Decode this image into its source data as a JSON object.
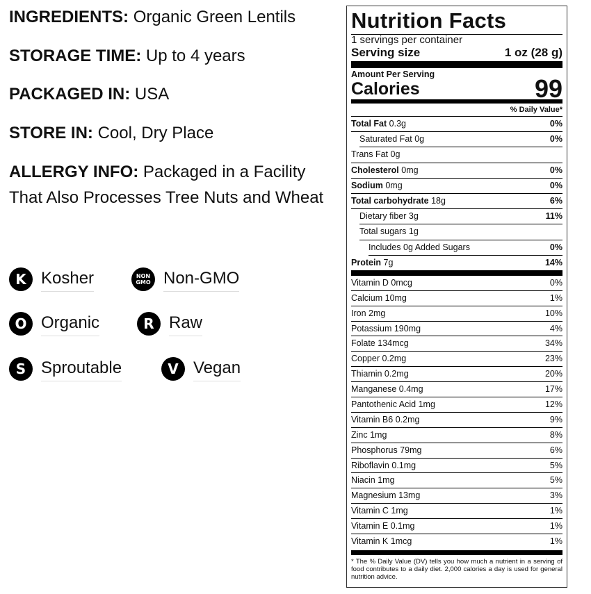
{
  "info": [
    {
      "label": "INGREDIENTS:",
      "value": "Organic Green Lentils"
    },
    {
      "label": "STORAGE TIME:",
      "value": "Up to 4 years"
    },
    {
      "label": "PACKAGED IN:",
      "value": "USA"
    },
    {
      "label": "STORE IN:",
      "value": "Cool, Dry Place"
    },
    {
      "label": "ALLERGY INFO:",
      "value": "Packaged in a Facility That Also Processes Tree Nuts and Wheat"
    }
  ],
  "badges": [
    {
      "icon": "K",
      "label": "Kosher"
    },
    {
      "icon": "NON GMO",
      "label": "Non-GMO"
    },
    {
      "icon": "O",
      "label": "Organic"
    },
    {
      "icon": "R",
      "label": "Raw"
    },
    {
      "icon": "S",
      "label": "Sproutable"
    },
    {
      "icon": "V",
      "label": "Vegan"
    }
  ],
  "nutrition": {
    "title": "Nutrition Facts",
    "servings": "1 servings per container",
    "serving_size_label": "Serving size",
    "serving_size": "1 oz (28 g)",
    "amount_per_serving": "Amount Per Serving",
    "calories_label": "Calories",
    "calories": "99",
    "dv_header": "% Daily Value*",
    "nutrients": [
      {
        "name": "Total Fat",
        "amount": "0.3g",
        "dv": "0%"
      },
      {
        "name": "Saturated Fat",
        "amount": "0g",
        "dv": "0%"
      },
      {
        "name": "Trans Fat",
        "amount": "0g",
        "dv": ""
      },
      {
        "name": "Cholesterol",
        "amount": "0mg",
        "dv": "0%"
      },
      {
        "name": "Sodium",
        "amount": "0mg",
        "dv": "0%"
      },
      {
        "name": "Total carbohydrate",
        "amount": "18g",
        "dv": "6%"
      },
      {
        "name": "Dietary fiber",
        "amount": "3g",
        "dv": "11%"
      },
      {
        "name": "Total sugars",
        "amount": "1g",
        "dv": ""
      },
      {
        "name": "Includes 0g Added Sugars",
        "amount": "",
        "dv": "0%"
      },
      {
        "name": "Protein",
        "amount": "7g",
        "dv": "14%"
      }
    ],
    "vitamins": [
      {
        "name": "Vitamin D 0mcg",
        "dv": "0%"
      },
      {
        "name": "Calcium 10mg",
        "dv": "1%"
      },
      {
        "name": "Iron 2mg",
        "dv": "10%"
      },
      {
        "name": "Potassium 190mg",
        "dv": "4%"
      },
      {
        "name": "Folate 134mcg",
        "dv": "34%"
      },
      {
        "name": "Copper 0.2mg",
        "dv": "23%"
      },
      {
        "name": "Thiamin 0.2mg",
        "dv": "20%"
      },
      {
        "name": "Manganese 0.4mg",
        "dv": "17%"
      },
      {
        "name": "Pantothenic Acid 1mg",
        "dv": "12%"
      },
      {
        "name": "Vitamin B6 0.2mg",
        "dv": "9%"
      },
      {
        "name": "Zinc 1mg",
        "dv": "8%"
      },
      {
        "name": "Phosphorus 79mg",
        "dv": "6%"
      },
      {
        "name": "Riboflavin 0.1mg",
        "dv": "5%"
      },
      {
        "name": "Niacin 1mg",
        "dv": "5%"
      },
      {
        "name": "Magnesium 13mg",
        "dv": "3%"
      },
      {
        "name": "Vitamin C 1mg",
        "dv": "1%"
      },
      {
        "name": "Vitamin E 0.1mg",
        "dv": "1%"
      },
      {
        "name": "Vitamin K 1mcg",
        "dv": "1%"
      }
    ],
    "footnote": "* The % Daily Value (DV) tells you how much a nutrient in a serving of food contributes to a daily diet. 2,000 calories a day is used for general nutrition advice."
  }
}
